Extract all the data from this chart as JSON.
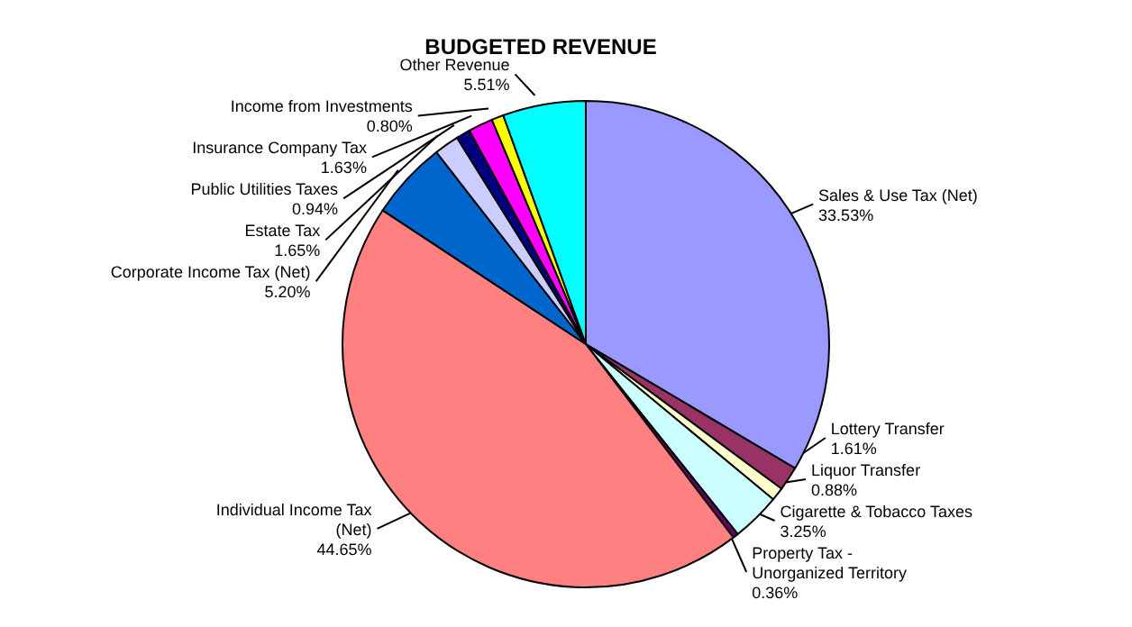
{
  "chart_data": {
    "type": "pie",
    "title": "BUDGETED REVENUE",
    "categories": [
      "Sales & Use Tax (Net)",
      "Lottery Transfer",
      "Liquor Transfer",
      "Cigarette & Tobacco Taxes",
      "Property Tax  - Unorganized Territory",
      "Individual Income Tax (Net)",
      "Corporate Income Tax (Net)",
      "Estate Tax",
      "Public Utilities Taxes",
      "Insurance Company Tax",
      "Income from Investments",
      "Other Revenue"
    ],
    "values": [
      33.53,
      1.61,
      0.88,
      3.25,
      0.36,
      44.65,
      5.2,
      1.65,
      0.94,
      1.63,
      0.8,
      5.51
    ],
    "value_labels": [
      "33.53%",
      "1.61%",
      "0.88%",
      "3.25%",
      "0.36%",
      "44.65%",
      "5.20%",
      "1.65%",
      "0.94%",
      "1.63%",
      "0.80%",
      "5.51%"
    ],
    "colors": [
      "#9999ff",
      "#993366",
      "#ffffcc",
      "#ccffff",
      "#660066",
      "#ff8080",
      "#0066cc",
      "#ccccff",
      "#000080",
      "#ff00ff",
      "#ffff00",
      "#00ffff"
    ]
  }
}
